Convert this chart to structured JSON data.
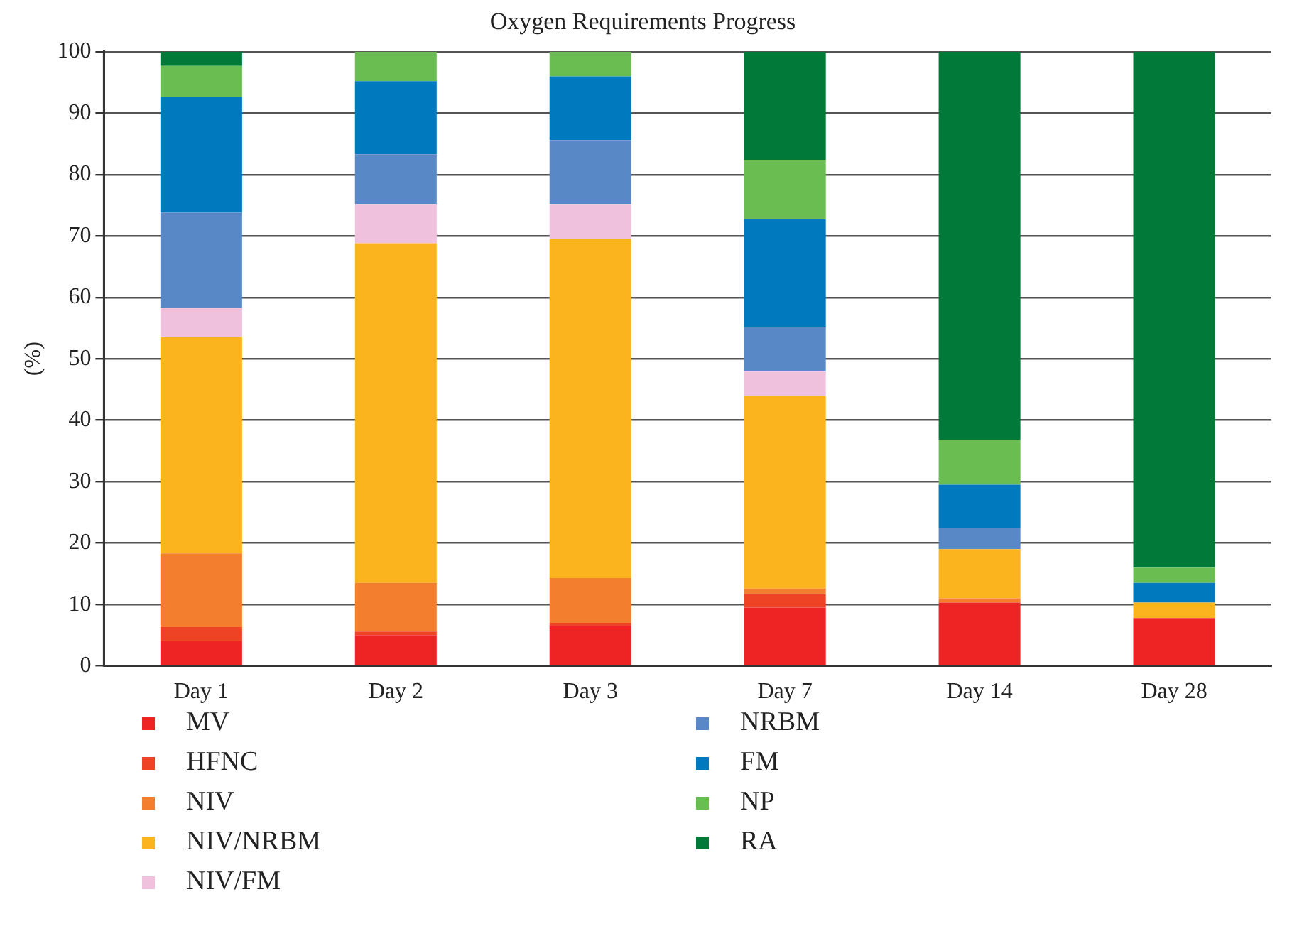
{
  "chart_data": {
    "type": "bar",
    "stacked": true,
    "title": "Oxygen Requirements Progress",
    "ylabel": "(%)",
    "categories": [
      "Day 1",
      "Day 2",
      "Day 3",
      "Day 7",
      "Day 14",
      "Day 28"
    ],
    "ylim": [
      0,
      100
    ],
    "yticks": [
      0,
      10,
      20,
      30,
      40,
      50,
      60,
      70,
      80,
      90,
      100
    ],
    "grid": "y",
    "legend": "bottom",
    "series": [
      {
        "name": "MV",
        "color": "#ee2424",
        "values": [
          4,
          5,
          6.5,
          9.5,
          10.3,
          7.8
        ]
      },
      {
        "name": "HFNC",
        "color": "#ee4425",
        "values": [
          2.3,
          0.6,
          0.5,
          2.2,
          0,
          0
        ]
      },
      {
        "name": "NIV",
        "color": "#f27e2e",
        "values": [
          12,
          7.9,
          7.3,
          0.9,
          0.7,
          0
        ]
      },
      {
        "name": "NIV/NRBM",
        "color": "#fbb41d",
        "values": [
          35.2,
          55.3,
          55.2,
          31.3,
          8,
          2.5
        ]
      },
      {
        "name": "NIV/FM",
        "color": "#f0c1dc",
        "values": [
          4.8,
          6.4,
          5.7,
          4,
          0,
          0
        ]
      },
      {
        "name": "NRBM",
        "color": "#5889c6",
        "values": [
          15.5,
          8.1,
          10.4,
          7.3,
          3.4,
          0
        ]
      },
      {
        "name": "FM",
        "color": "#0079be",
        "values": [
          18.9,
          11.9,
          10.4,
          17.5,
          7.1,
          3.2
        ]
      },
      {
        "name": "NP",
        "color": "#6abe51",
        "values": [
          5,
          4.8,
          4,
          9.7,
          7.3,
          2.5
        ]
      },
      {
        "name": "RA",
        "color": "#007939",
        "values": [
          2.3,
          0,
          0,
          17.6,
          63.2,
          84
        ]
      }
    ]
  }
}
